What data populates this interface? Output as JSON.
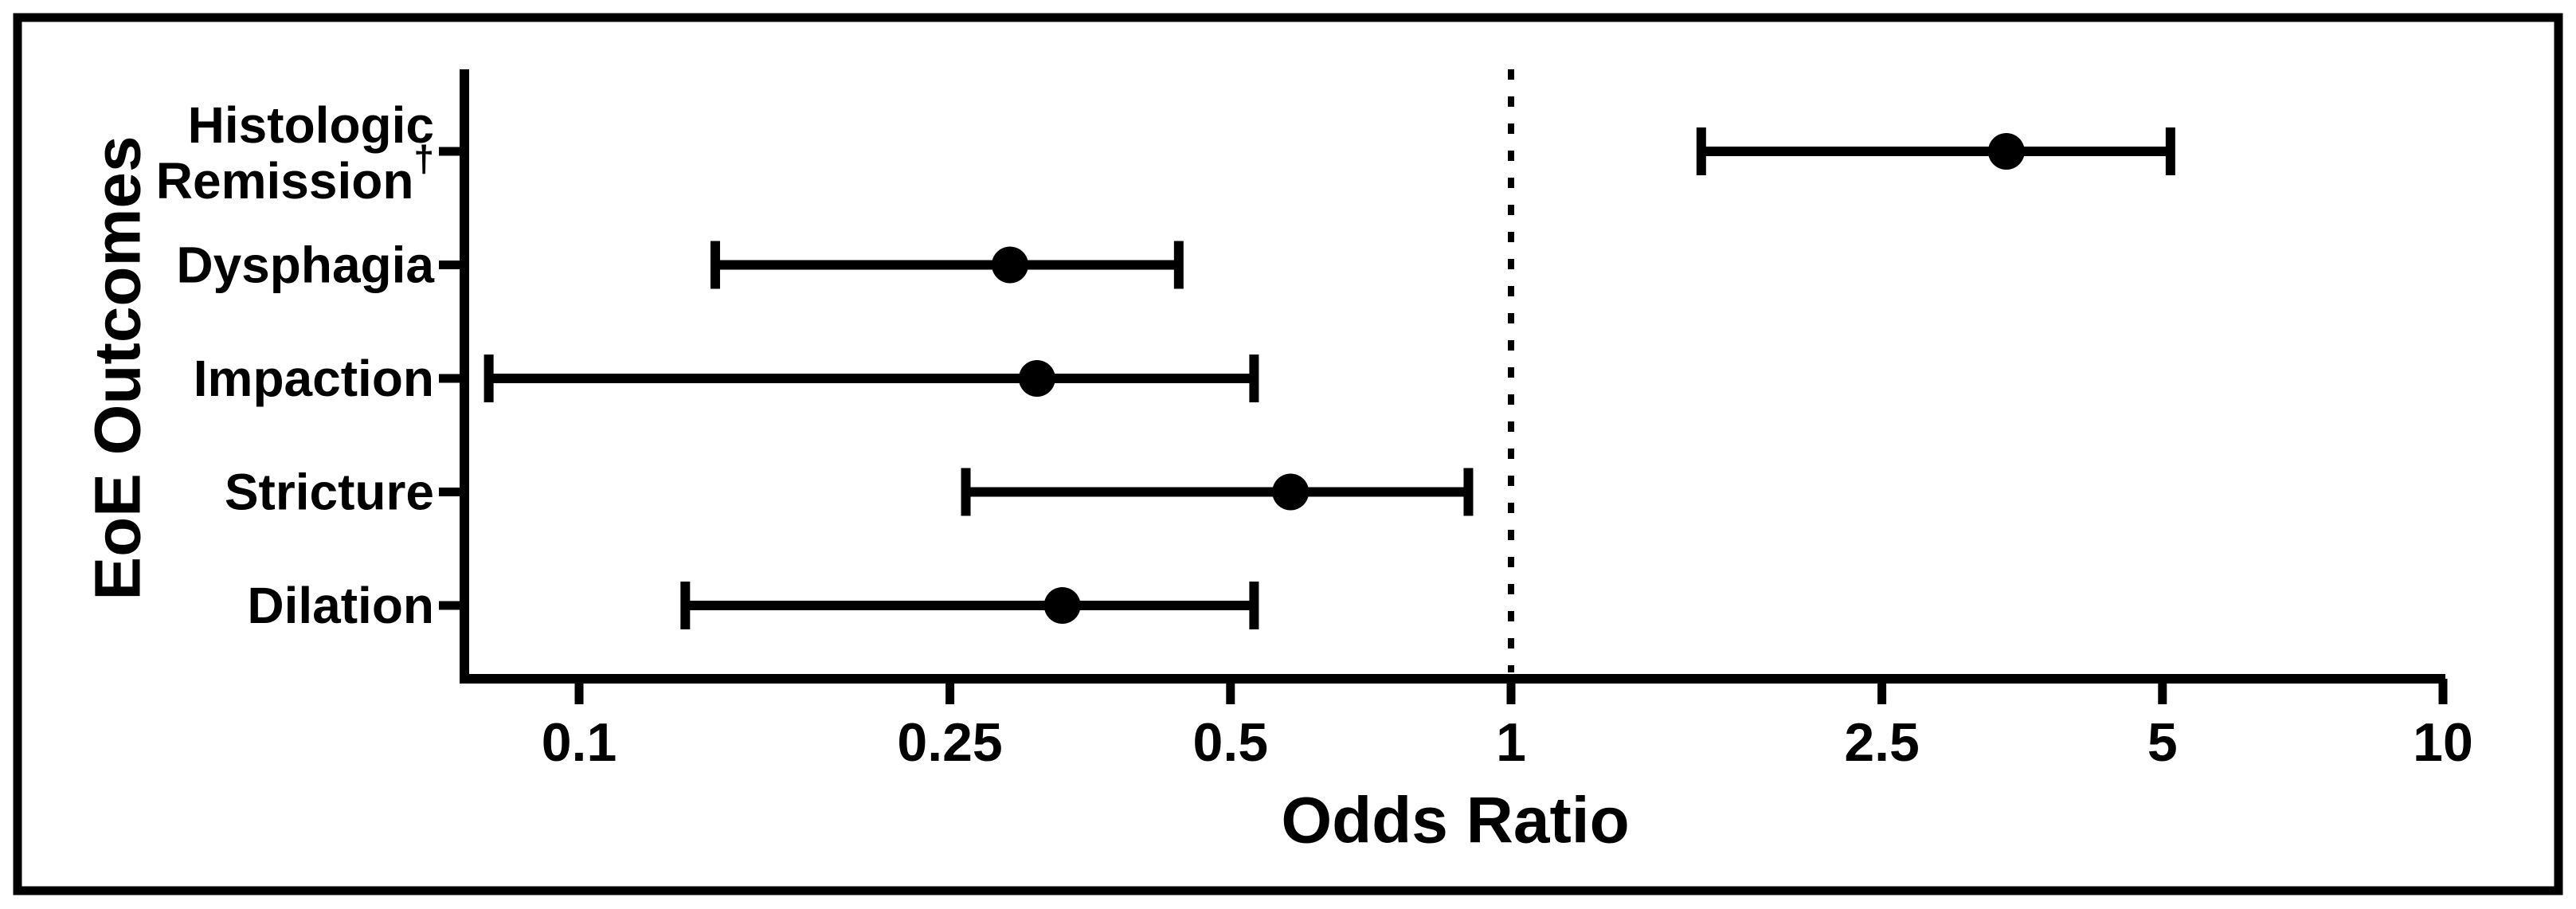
{
  "figure": {
    "background": "#ffffff",
    "line_color": "#000000",
    "frame": "black rectangular border around entire figure"
  },
  "chart_data": {
    "type": "scatter",
    "subtype": "forest-plot",
    "title": "",
    "xlabel": "Odds Ratio",
    "ylabel": "EoE Outcomes",
    "x_scale": "log10",
    "xlim": [
      0.075,
      10.1
    ],
    "x_ticks": [
      0.1,
      0.25,
      0.5,
      1,
      2.5,
      5,
      10
    ],
    "x_tick_labels": [
      "0.1",
      "0.25",
      "0.5",
      "1",
      "2.5",
      "5",
      "10"
    ],
    "reference_line": 1,
    "reference_line_style": "dotted",
    "grid": false,
    "legend": null,
    "marker": "filled black circle with horizontal error bar and end caps",
    "categories": [
      {
        "label_lines": [
          "Histologic",
          "Remission"
        ],
        "superscript": "†",
        "or": 3.4,
        "ci_low": 1.6,
        "ci_high": 5.1
      },
      {
        "label_lines": [
          "Dysphagia"
        ],
        "superscript": "",
        "or": 0.29,
        "ci_low": 0.14,
        "ci_high": 0.44
      },
      {
        "label_lines": [
          "Impaction"
        ],
        "superscript": "",
        "or": 0.31,
        "ci_low": 0.08,
        "ci_high": 0.53
      },
      {
        "label_lines": [
          "Stricture"
        ],
        "superscript": "",
        "or": 0.58,
        "ci_low": 0.26,
        "ci_high": 0.9
      },
      {
        "label_lines": [
          "Dilation"
        ],
        "superscript": "",
        "or": 0.33,
        "ci_low": 0.13,
        "ci_high": 0.53
      }
    ]
  }
}
